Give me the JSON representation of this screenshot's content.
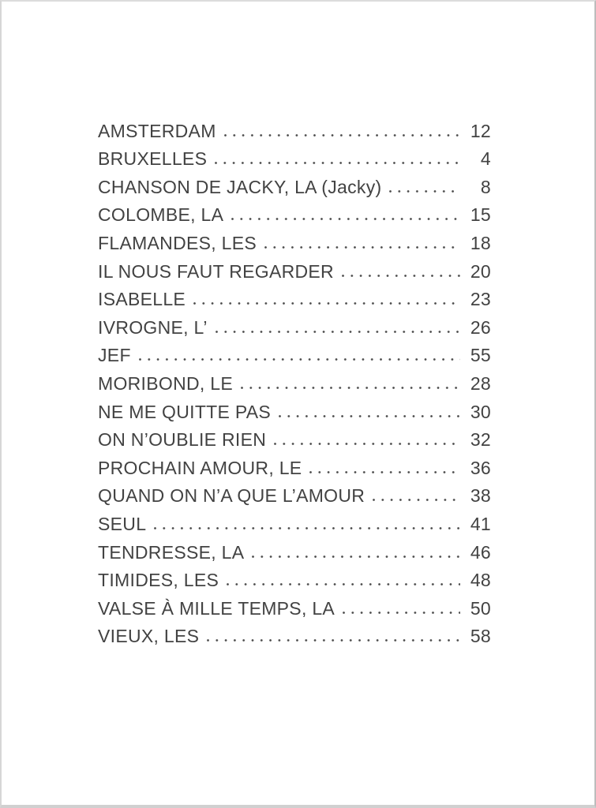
{
  "document": {
    "kind": "songbook-table-of-contents"
  },
  "colors": {
    "text": "#424242",
    "page_bg": "#ffffff",
    "scan_edge": "#c9c9c9"
  },
  "entries": [
    {
      "title": "AMSTERDAM",
      "page": "12"
    },
    {
      "title": "BRUXELLES",
      "page": "4"
    },
    {
      "title": "CHANSON DE JACKY, LA (Jacky)",
      "page": "8"
    },
    {
      "title": "COLOMBE, LA",
      "page": "15"
    },
    {
      "title": "FLAMANDES, LES",
      "page": "18"
    },
    {
      "title": "IL NOUS FAUT REGARDER",
      "page": "20"
    },
    {
      "title": "ISABELLE",
      "page": "23"
    },
    {
      "title": "IVROGNE, L’",
      "page": "26"
    },
    {
      "title": "JEF",
      "page": "55"
    },
    {
      "title": "MORIBOND, LE",
      "page": "28"
    },
    {
      "title": "NE ME QUITTE PAS",
      "page": "30"
    },
    {
      "title": "ON N’OUBLIE RIEN",
      "page": "32"
    },
    {
      "title": "PROCHAIN AMOUR, LE",
      "page": "36"
    },
    {
      "title": "QUAND ON N’A QUE L’AMOUR",
      "page": "38"
    },
    {
      "title": "SEUL",
      "page": "41"
    },
    {
      "title": "TENDRESSE, LA",
      "page": "46"
    },
    {
      "title": "TIMIDES, LES",
      "page": "48"
    },
    {
      "title": "VALSE À MILLE TEMPS, LA",
      "page": "50"
    },
    {
      "title": "VIEUX, LES",
      "page": "58"
    }
  ]
}
